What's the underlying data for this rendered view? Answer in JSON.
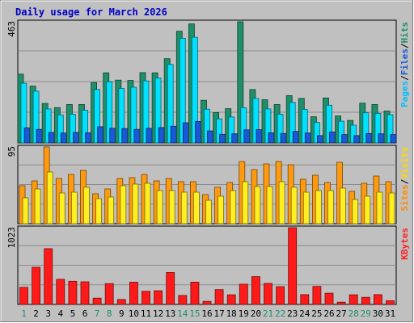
{
  "chart_data": [
    {
      "type": "bar",
      "panel": "hits",
      "title": "Daily usage for March 2026",
      "ymax_label": "463",
      "ylim": [
        0,
        463
      ],
      "categories": [
        "1",
        "2",
        "3",
        "4",
        "5",
        "6",
        "7",
        "8",
        "9",
        "10",
        "11",
        "12",
        "13",
        "14",
        "15",
        "16",
        "17",
        "18",
        "19",
        "20",
        "21",
        "22",
        "23",
        "24",
        "25",
        "26",
        "27",
        "28",
        "29",
        "30",
        "31"
      ],
      "weekend_days": [
        "1",
        "7",
        "8",
        "14",
        "15",
        "21",
        "22",
        "28",
        "29"
      ],
      "legend": [
        {
          "text": "Pages",
          "color": "#00c0ff"
        },
        {
          "text": "/",
          "color": "#000000"
        },
        {
          "text": "Files",
          "color": "#1a58d8"
        },
        {
          "text": "/",
          "color": "#000000"
        },
        {
          "text": "Hits",
          "color": "#1f8f6a"
        }
      ],
      "series": [
        {
          "name": "Hits",
          "color": "#1f8f6a",
          "values": [
            263,
            217,
            151,
            135,
            147,
            147,
            231,
            268,
            240,
            239,
            269,
            268,
            322,
            427,
            455,
            163,
            116,
            131,
            463,
            204,
            165,
            147,
            181,
            170,
            100,
            172,
            103,
            86,
            152,
            147,
            122
          ]
        },
        {
          "name": "Files",
          "color": "#00e0ff",
          "values": [
            228,
            198,
            130,
            107,
            110,
            125,
            204,
            234,
            208,
            213,
            237,
            248,
            300,
            400,
            404,
            129,
            92,
            99,
            135,
            170,
            130,
            110,
            155,
            128,
            78,
            144,
            83,
            68,
            115,
            113,
            108
          ]
        },
        {
          "name": "Pages",
          "color": "#1a58d8",
          "values": [
            58,
            52,
            40,
            38,
            40,
            39,
            62,
            56,
            55,
            52,
            56,
            59,
            64,
            77,
            82,
            46,
            33,
            35,
            50,
            51,
            39,
            36,
            44,
            38,
            28,
            42,
            32,
            28,
            36,
            35,
            32
          ]
        }
      ]
    },
    {
      "type": "bar",
      "panel": "visits",
      "ymax_label": "95",
      "ylim": [
        0,
        95
      ],
      "categories": [
        "1",
        "2",
        "3",
        "4",
        "5",
        "6",
        "7",
        "8",
        "9",
        "10",
        "11",
        "12",
        "13",
        "14",
        "15",
        "16",
        "17",
        "18",
        "19",
        "20",
        "21",
        "22",
        "23",
        "24",
        "25",
        "26",
        "27",
        "28",
        "29",
        "30",
        "31"
      ],
      "legend": [
        {
          "text": "Sites",
          "color": "#ff8c00"
        },
        {
          "text": "/",
          "color": "#000000"
        },
        {
          "text": "Visits",
          "color": "#ffd800"
        }
      ],
      "series": [
        {
          "name": "Visits",
          "color": "#ff9a10",
          "values": [
            47,
            53,
            95,
            56,
            61,
            66,
            37,
            43,
            56,
            57,
            61,
            53,
            56,
            52,
            52,
            36,
            45,
            51,
            77,
            67,
            74,
            77,
            73,
            55,
            60,
            51,
            76,
            40,
            50,
            59,
            52
          ]
        },
        {
          "name": "Sites",
          "color": "#ffee20",
          "values": [
            32,
            43,
            64,
            38,
            39,
            45,
            31,
            33,
            47,
            49,
            50,
            41,
            41,
            39,
            39,
            29,
            34,
            41,
            52,
            46,
            46,
            52,
            45,
            39,
            41,
            41,
            44,
            30,
            34,
            39,
            38
          ]
        }
      ]
    },
    {
      "type": "bar",
      "panel": "kbytes",
      "ymax_label": "1023",
      "ylim": [
        0,
        1023
      ],
      "categories": [
        "1",
        "2",
        "3",
        "4",
        "5",
        "6",
        "7",
        "8",
        "9",
        "10",
        "11",
        "12",
        "13",
        "14",
        "15",
        "16",
        "17",
        "18",
        "19",
        "20",
        "21",
        "22",
        "23",
        "24",
        "25",
        "26",
        "27",
        "28",
        "29",
        "30",
        "31"
      ],
      "legend": [
        {
          "text": "KBytes",
          "color": "#ff2020"
        }
      ],
      "series": [
        {
          "name": "KBytes",
          "color": "#ff1a1a",
          "values": [
            228,
            495,
            744,
            335,
            309,
            301,
            84,
            278,
            66,
            297,
            175,
            182,
            425,
            120,
            297,
            41,
            197,
            128,
            270,
            370,
            280,
            237,
            1023,
            130,
            240,
            150,
            30,
            128,
            95,
            130,
            50
          ]
        }
      ]
    }
  ]
}
